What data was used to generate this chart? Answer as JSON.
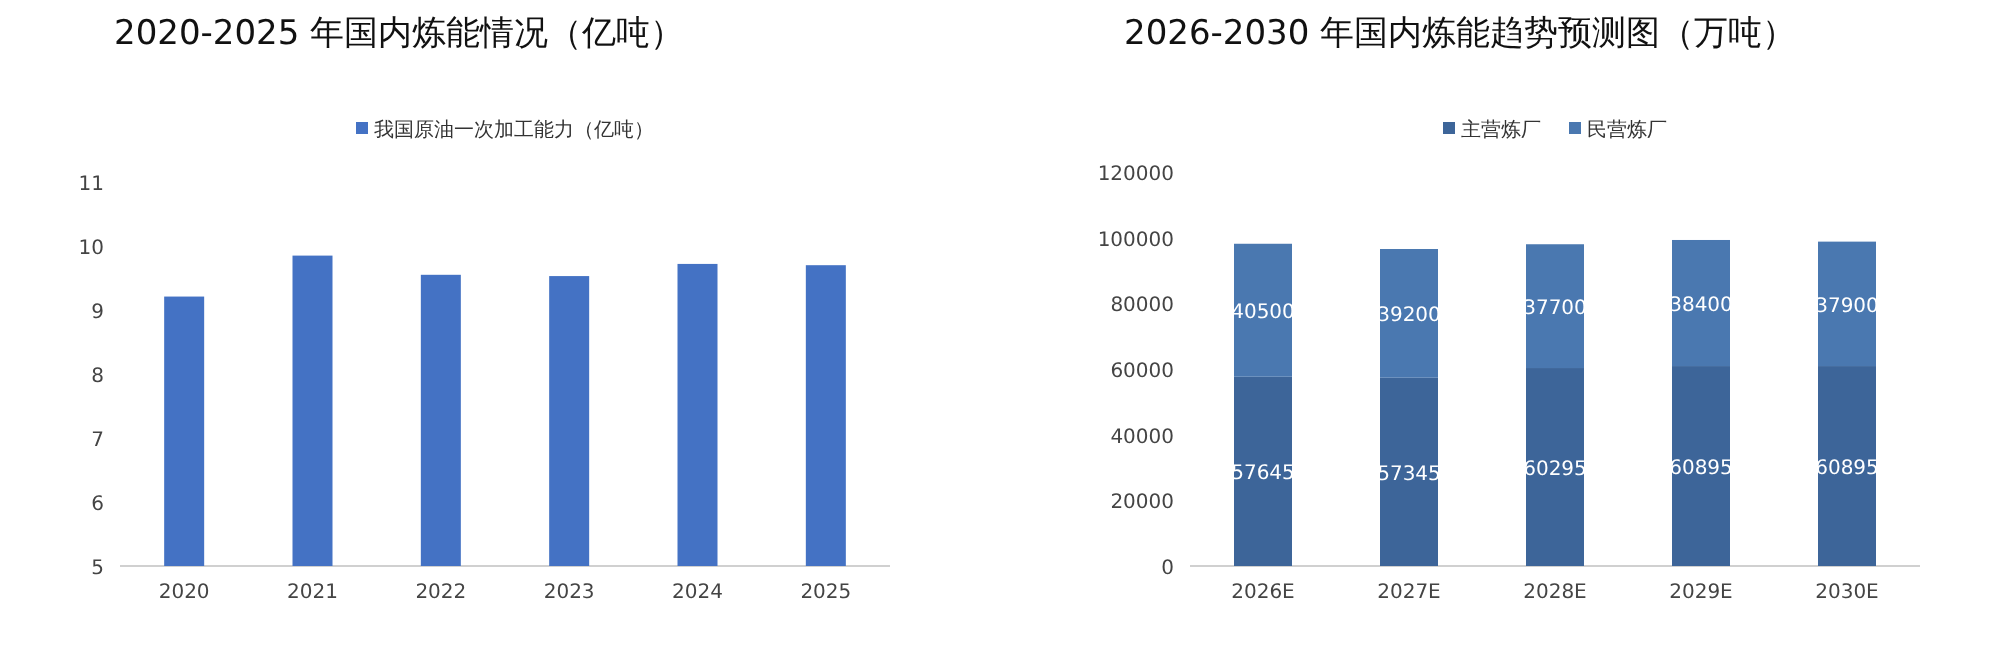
{
  "chart_data": [
    {
      "type": "bar",
      "title": "2020-2025 年国内炼能情况（亿吨）",
      "categories": [
        "2020",
        "2021",
        "2022",
        "2023",
        "2024",
        "2025"
      ],
      "series": [
        {
          "name": "我国原油一次加工能力（亿吨）",
          "color": "#4472c4",
          "values": [
            9.21,
            9.85,
            9.55,
            9.53,
            9.72,
            9.7
          ]
        }
      ],
      "ylim": [
        5,
        11
      ],
      "yticks": [
        5,
        6,
        7,
        8,
        9,
        10,
        11
      ],
      "legend": "top",
      "grid": false
    },
    {
      "type": "bar",
      "title": "2026-2030 年国内炼能趋势预测图（万吨）",
      "categories": [
        "2026E",
        "2027E",
        "2028E",
        "2029E",
        "2030E"
      ],
      "stacked": true,
      "series": [
        {
          "name": "主营炼厂",
          "color": "#3d6599",
          "values": [
            57645,
            57345,
            60295,
            60895,
            60895
          ]
        },
        {
          "name": "民营炼厂",
          "color": "#4a78b0",
          "values": [
            40500,
            39200,
            37700,
            38400,
            37900
          ]
        }
      ],
      "ylim": [
        0,
        120000
      ],
      "yticks": [
        0,
        20000,
        40000,
        60000,
        80000,
        100000,
        120000
      ],
      "legend": "top",
      "grid": false,
      "data_labels": true
    }
  ]
}
